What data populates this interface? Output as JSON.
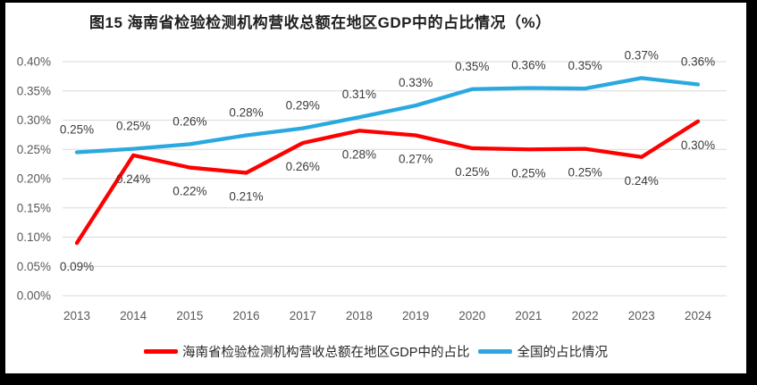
{
  "title": "图15 海南省检验检测机构营收总额在地区GDP中的占比情况（%）",
  "chart_data": {
    "type": "line",
    "categories": [
      "2013",
      "2014",
      "2015",
      "2016",
      "2017",
      "2018",
      "2019",
      "2020",
      "2021",
      "2022",
      "2023",
      "2024"
    ],
    "series": [
      {
        "name": "海南省检验检测机构营收总额在地区GDP中的占比",
        "color": "#FF0000",
        "values": [
          0.09,
          0.24,
          0.22,
          0.21,
          0.26,
          0.28,
          0.27,
          0.25,
          0.25,
          0.25,
          0.24,
          0.3
        ],
        "labels": [
          "0.09%",
          "0.24%",
          "0.22%",
          "0.21%",
          "0.26%",
          "0.28%",
          "0.27%",
          "0.25%",
          "0.25%",
          "0.25%",
          "0.24%",
          "0.30%"
        ],
        "plot_values": [
          0.09,
          0.24,
          0.219,
          0.21,
          0.261,
          0.282,
          0.274,
          0.252,
          0.25,
          0.251,
          0.237,
          0.298
        ],
        "label_position": "below"
      },
      {
        "name": "全国的占比情况",
        "color": "#29A9E0",
        "values": [
          0.25,
          0.25,
          0.26,
          0.28,
          0.29,
          0.31,
          0.33,
          0.35,
          0.36,
          0.35,
          0.37,
          0.36
        ],
        "labels": [
          "0.25%",
          "0.25%",
          "0.26%",
          "0.28%",
          "0.29%",
          "0.31%",
          "0.33%",
          "0.35%",
          "0.36%",
          "0.35%",
          "0.37%",
          "0.36%"
        ],
        "plot_values": [
          0.245,
          0.251,
          0.259,
          0.274,
          0.286,
          0.305,
          0.325,
          0.353,
          0.355,
          0.354,
          0.372,
          0.361
        ],
        "label_position": "above"
      }
    ],
    "y_axis": {
      "min": 0,
      "max": 0.4,
      "step": 0.05,
      "tick_labels": [
        "0.00%",
        "0.05%",
        "0.10%",
        "0.15%",
        "0.20%",
        "0.25%",
        "0.30%",
        "0.35%",
        "0.40%"
      ]
    },
    "xlabel": "",
    "ylabel": "",
    "grid": true,
    "legend_position": "bottom"
  }
}
